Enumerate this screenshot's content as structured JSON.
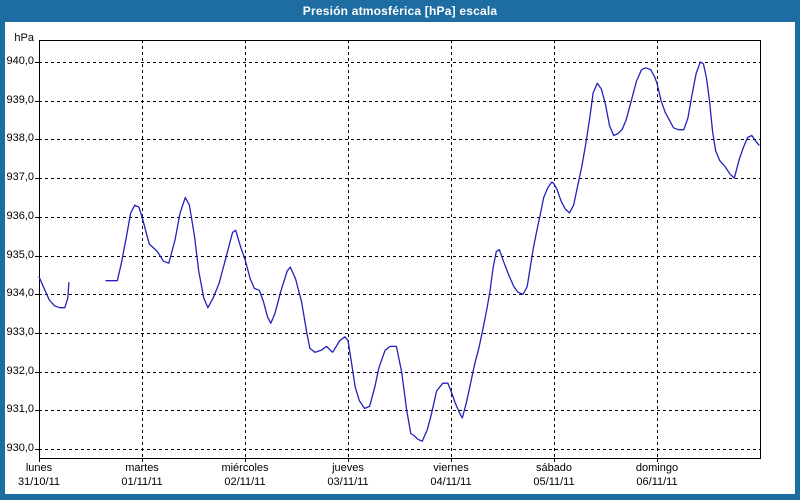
{
  "window": {
    "title": "Presión atmosférica [hPa] escala"
  },
  "colors": {
    "titlebar_bg": "#1d6da3",
    "frame": "#1d6da3",
    "title_text": "#ffffff",
    "plot_bg": "#ffffff",
    "grid": "#000000",
    "line": "#2222bb",
    "text": "#000000"
  },
  "chart_data": {
    "type": "line",
    "title": "Presión atmosférica [hPa] escala",
    "unit_label": "hPa",
    "ylabel": "hPa",
    "ylim": [
      929.7,
      940.6
    ],
    "xlim_days": [
      0,
      7
    ],
    "grid": true,
    "legend": "none",
    "decimal_separator": ",",
    "y_ticks": [
      {
        "value": 940,
        "label": "940,0"
      },
      {
        "value": 939,
        "label": "939,0"
      },
      {
        "value": 938,
        "label": "938,0"
      },
      {
        "value": 937,
        "label": "937,0"
      },
      {
        "value": 936,
        "label": "936,0"
      },
      {
        "value": 935,
        "label": "935,0"
      },
      {
        "value": 934,
        "label": "934,0"
      },
      {
        "value": 933,
        "label": "933,0"
      },
      {
        "value": 932,
        "label": "932,0"
      },
      {
        "value": 931,
        "label": "931,0"
      },
      {
        "value": 930,
        "label": "930,0"
      }
    ],
    "x_days": [
      {
        "name": "lunes",
        "date": "31/10/11"
      },
      {
        "name": "martes",
        "date": "01/11/11"
      },
      {
        "name": "miércoles",
        "date": "02/11/11"
      },
      {
        "name": "jueves",
        "date": "03/11/11"
      },
      {
        "name": "viernes",
        "date": "04/11/11"
      },
      {
        "name": "sábado",
        "date": "05/11/11"
      },
      {
        "name": "domingo",
        "date": "06/11/11"
      }
    ],
    "series": [
      {
        "name": "Presión atmosférica",
        "color": "#2222bb",
        "units": "hPa",
        "x_units": "days_from_monday_00h",
        "segments": [
          [
            [
              0.0,
              934.45
            ],
            [
              0.05,
              934.15
            ],
            [
              0.1,
              933.85
            ],
            [
              0.15,
              933.7
            ],
            [
              0.2,
              933.65
            ],
            [
              0.25,
              933.65
            ],
            [
              0.28,
              933.9
            ],
            [
              0.29,
              934.3
            ]
          ],
          [
            [
              0.65,
              934.35
            ],
            [
              0.76,
              934.35
            ],
            [
              0.8,
              934.8
            ],
            [
              0.85,
              935.5
            ],
            [
              0.89,
              936.1
            ],
            [
              0.93,
              936.3
            ],
            [
              0.97,
              936.25
            ],
            [
              1.0,
              936.0
            ],
            [
              1.07,
              935.3
            ],
            [
              1.15,
              935.1
            ],
            [
              1.21,
              934.85
            ],
            [
              1.26,
              934.8
            ],
            [
              1.32,
              935.4
            ],
            [
              1.37,
              936.1
            ],
            [
              1.42,
              936.5
            ],
            [
              1.46,
              936.3
            ],
            [
              1.51,
              935.5
            ],
            [
              1.55,
              934.6
            ],
            [
              1.6,
              933.9
            ],
            [
              1.64,
              933.65
            ],
            [
              1.69,
              933.9
            ],
            [
              1.75,
              934.3
            ],
            [
              1.82,
              935.0
            ],
            [
              1.88,
              935.6
            ],
            [
              1.91,
              935.65
            ],
            [
              1.96,
              935.2
            ],
            [
              2.0,
              934.9
            ],
            [
              2.05,
              934.4
            ],
            [
              2.09,
              934.15
            ],
            [
              2.14,
              934.1
            ],
            [
              2.18,
              933.8
            ],
            [
              2.22,
              933.4
            ],
            [
              2.25,
              933.25
            ],
            [
              2.29,
              933.5
            ],
            [
              2.35,
              934.1
            ],
            [
              2.41,
              934.6
            ],
            [
              2.44,
              934.7
            ],
            [
              2.49,
              934.4
            ],
            [
              2.55,
              933.8
            ],
            [
              2.6,
              933.0
            ],
            [
              2.63,
              932.6
            ],
            [
              2.68,
              932.5
            ],
            [
              2.74,
              932.55
            ],
            [
              2.79,
              932.65
            ],
            [
              2.85,
              932.5
            ],
            [
              2.92,
              932.8
            ],
            [
              2.97,
              932.9
            ],
            [
              3.0,
              932.8
            ],
            [
              3.03,
              932.3
            ],
            [
              3.07,
              931.6
            ],
            [
              3.11,
              931.25
            ],
            [
              3.16,
              931.05
            ],
            [
              3.21,
              931.1
            ],
            [
              3.26,
              931.6
            ],
            [
              3.3,
              932.1
            ],
            [
              3.36,
              932.55
            ],
            [
              3.41,
              932.65
            ],
            [
              3.47,
              932.65
            ],
            [
              3.52,
              932.0
            ],
            [
              3.57,
              931.0
            ],
            [
              3.61,
              930.4
            ],
            [
              3.64,
              930.35
            ],
            [
              3.68,
              930.25
            ],
            [
              3.72,
              930.2
            ],
            [
              3.77,
              930.5
            ],
            [
              3.81,
              930.9
            ],
            [
              3.86,
              931.5
            ],
            [
              3.92,
              931.7
            ],
            [
              3.97,
              931.7
            ],
            [
              4.0,
              931.5
            ],
            [
              4.04,
              931.2
            ],
            [
              4.08,
              930.95
            ],
            [
              4.11,
              930.8
            ],
            [
              4.15,
              931.2
            ],
            [
              4.19,
              931.7
            ],
            [
              4.23,
              932.2
            ],
            [
              4.27,
              932.6
            ],
            [
              4.31,
              933.1
            ],
            [
              4.35,
              933.65
            ],
            [
              4.38,
              934.1
            ],
            [
              4.41,
              934.7
            ],
            [
              4.44,
              935.1
            ],
            [
              4.47,
              935.15
            ],
            [
              4.51,
              934.85
            ],
            [
              4.56,
              934.5
            ],
            [
              4.61,
              934.2
            ],
            [
              4.65,
              934.05
            ],
            [
              4.7,
              934.0
            ],
            [
              4.74,
              934.2
            ],
            [
              4.77,
              934.7
            ],
            [
              4.8,
              935.2
            ],
            [
              4.83,
              935.6
            ],
            [
              4.87,
              936.1
            ],
            [
              4.9,
              936.5
            ],
            [
              4.94,
              936.75
            ],
            [
              4.98,
              936.9
            ],
            [
              5.0,
              936.85
            ],
            [
              5.03,
              936.7
            ],
            [
              5.07,
              936.4
            ],
            [
              5.11,
              936.2
            ],
            [
              5.15,
              936.1
            ],
            [
              5.19,
              936.3
            ],
            [
              5.23,
              936.8
            ],
            [
              5.27,
              937.3
            ],
            [
              5.31,
              937.9
            ],
            [
              5.35,
              938.6
            ],
            [
              5.38,
              939.2
            ],
            [
              5.42,
              939.45
            ],
            [
              5.46,
              939.3
            ],
            [
              5.5,
              938.9
            ],
            [
              5.54,
              938.35
            ],
            [
              5.58,
              938.1
            ],
            [
              5.62,
              938.15
            ],
            [
              5.66,
              938.25
            ],
            [
              5.7,
              938.5
            ],
            [
              5.75,
              939.0
            ],
            [
              5.8,
              939.5
            ],
            [
              5.85,
              939.8
            ],
            [
              5.89,
              939.85
            ],
            [
              5.94,
              939.8
            ],
            [
              5.98,
              939.6
            ],
            [
              6.0,
              939.45
            ],
            [
              6.04,
              939.0
            ],
            [
              6.08,
              938.7
            ],
            [
              6.12,
              938.5
            ],
            [
              6.16,
              938.3
            ],
            [
              6.21,
              938.25
            ],
            [
              6.26,
              938.25
            ],
            [
              6.3,
              938.55
            ],
            [
              6.34,
              939.15
            ],
            [
              6.38,
              939.7
            ],
            [
              6.42,
              940.0
            ],
            [
              6.45,
              939.95
            ],
            [
              6.48,
              939.6
            ],
            [
              6.51,
              939.0
            ],
            [
              6.54,
              938.2
            ],
            [
              6.57,
              937.7
            ],
            [
              6.61,
              937.45
            ],
            [
              6.66,
              937.3
            ],
            [
              6.71,
              937.1
            ],
            [
              6.75,
              937.0
            ],
            [
              6.8,
              937.5
            ],
            [
              6.84,
              937.8
            ],
            [
              6.88,
              938.05
            ],
            [
              6.92,
              938.1
            ],
            [
              6.96,
              937.95
            ],
            [
              6.99,
              937.85
            ]
          ]
        ]
      }
    ]
  }
}
